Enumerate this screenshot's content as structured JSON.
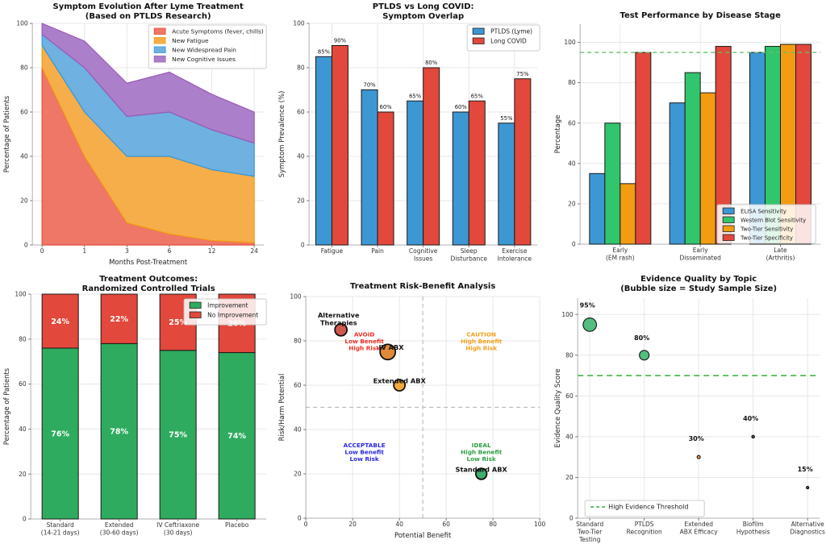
{
  "figure": {
    "background": "#ffffff",
    "description": "Six-panel PTLDS / Lyme disease research dashboard"
  },
  "chart_data": [
    {
      "type": "area",
      "stacked": true,
      "title": [
        "Symptom Evolution After Lyme Treatment",
        "(Based on PTLDS Research)"
      ],
      "xlabel": "Months Post-Treatment",
      "ylabel": "Percentage of Patients",
      "x_ticks": [
        "0",
        "1",
        "3",
        "6",
        "12",
        "24"
      ],
      "yticks": [
        0,
        20,
        40,
        60,
        80,
        100
      ],
      "ylim": [
        0,
        100
      ],
      "grid": true,
      "legend_position": "upper-right",
      "series": [
        {
          "name": "Acute Symptoms (fever, chills)",
          "color": "#ee7767",
          "edge": "#e74c3c",
          "values": [
            80,
            40,
            10,
            5,
            2,
            1
          ]
        },
        {
          "name": "New Fatigue",
          "color": "#f6ae4b",
          "edge": "#f39c12",
          "values": [
            10,
            20,
            30,
            35,
            32,
            30
          ]
        },
        {
          "name": "New Widespread Pain",
          "color": "#6fb1e0",
          "edge": "#3498db",
          "values": [
            5,
            20,
            18,
            20,
            18,
            15
          ]
        },
        {
          "name": "New Cognitive Issues",
          "color": "#ab7fc9",
          "edge": "#9b59b6",
          "values": [
            5,
            12,
            15,
            18,
            16,
            14
          ]
        }
      ]
    },
    {
      "type": "bar",
      "grouped": true,
      "title": [
        "PTLDS vs Long COVID:",
        "Symptom Overlap"
      ],
      "xlabel": "",
      "ylabel": "Symptom Prevalence (%)",
      "categories": [
        [
          "Fatigue"
        ],
        [
          "Pain"
        ],
        [
          "Cognitive",
          "Issues"
        ],
        [
          "Sleep",
          "Disturbance"
        ],
        [
          "Exercise",
          "Intolerance"
        ]
      ],
      "yticks": [
        0,
        20,
        40,
        60,
        80,
        100
      ],
      "ylim": [
        0,
        100
      ],
      "grid": true,
      "bar_value_labels": true,
      "legend_position": "upper-right",
      "series": [
        {
          "name": "PTLDS (Lyme)",
          "color": "#3d97d3",
          "values": [
            85,
            70,
            65,
            60,
            55
          ]
        },
        {
          "name": "Long COVID",
          "color": "#e2483b",
          "values": [
            90,
            60,
            80,
            65,
            75
          ]
        }
      ]
    },
    {
      "type": "bar",
      "grouped": true,
      "title": [
        "Test Performance by Disease Stage"
      ],
      "xlabel": "",
      "ylabel": "Percentage",
      "categories": [
        [
          "Early",
          "(EM rash)"
        ],
        [
          "Early",
          "Disseminated"
        ],
        [
          "Late",
          "(Arthritis)"
        ]
      ],
      "yticks": [
        0,
        20,
        40,
        60,
        80,
        100
      ],
      "ylim": [
        0,
        109
      ],
      "grid": true,
      "reference_line": {
        "y": 95,
        "color": "#6abf69",
        "style": "dashed"
      },
      "legend_position": "lower-right",
      "series": [
        {
          "name": "ELISA Sensitivity",
          "color": "#3d97d3",
          "values": [
            35,
            70,
            95
          ]
        },
        {
          "name": "Western Blot Sensitivity",
          "color": "#31c56d",
          "values": [
            60,
            85,
            98
          ]
        },
        {
          "name": "Two-Tier Sensitivity",
          "color": "#f39c12",
          "values": [
            30,
            75,
            99
          ]
        },
        {
          "name": "Two-Tier Specificity",
          "color": "#e2483b",
          "values": [
            95,
            98,
            99
          ]
        }
      ]
    },
    {
      "type": "bar",
      "stacked": true,
      "title": [
        "Treatment Outcomes:",
        "Randomized Controlled Trials"
      ],
      "xlabel": "",
      "ylabel": "Percentage of Patients",
      "categories": [
        [
          "Standard",
          "(14-21 days)"
        ],
        [
          "Extended",
          "(30-60 days)"
        ],
        [
          "IV Ceftriaxone",
          "(30 days)"
        ],
        [
          "Placebo"
        ]
      ],
      "yticks": [
        0,
        20,
        40,
        60,
        80,
        100
      ],
      "ylim": [
        0,
        100
      ],
      "grid": true,
      "segment_labels": true,
      "legend_position": "upper-right",
      "series": [
        {
          "name": "Improvement",
          "color": "#2eab5e",
          "values": [
            76,
            78,
            75,
            74
          ]
        },
        {
          "name": "No Improvement",
          "color": "#e2483b",
          "values": [
            24,
            22,
            25,
            26
          ]
        }
      ]
    },
    {
      "type": "scatter",
      "title": [
        "Treatment Risk-Benefit Analysis"
      ],
      "xlabel": "Potential Benefit",
      "ylabel": "Risk/Harm Potential",
      "xlim": [
        0,
        100
      ],
      "ylim": [
        0,
        100
      ],
      "xticks": [
        0,
        20,
        40,
        60,
        80,
        100
      ],
      "yticks": [
        0,
        20,
        40,
        60,
        80,
        100
      ],
      "grid": true,
      "divider_lines": {
        "x": 50,
        "y": 50,
        "color": "#bcbcbc",
        "style": "dashed"
      },
      "points": [
        {
          "label": "Alternative Therapies",
          "x": 15,
          "y": 85,
          "radius": 7.5,
          "color": "#cf584e",
          "label_lines": [
            "Alternative",
            "Therapies"
          ],
          "label_x": 14,
          "label_y": 90.5
        },
        {
          "label": "IV ABX",
          "x": 35,
          "y": 75,
          "radius": 9.5,
          "color": "#e08a38",
          "label_lines": [
            "IV ABX"
          ],
          "label_x": 36.5,
          "label_y": 76
        },
        {
          "label": "Extended ABX",
          "x": 40,
          "y": 60,
          "radius": 7,
          "color": "#f2a93e",
          "label_lines": [
            "Extended ABX"
          ],
          "label_x": 40,
          "label_y": 61
        },
        {
          "label": "Standard ABX",
          "x": 75,
          "y": 20,
          "radius": 6.8,
          "color": "#3fae6e",
          "label_lines": [
            "Standard ABX"
          ],
          "label_x": 75,
          "label_y": 21
        }
      ],
      "quadrant_labels": [
        {
          "lines": [
            "AVOID",
            "Low Benefit",
            "High Risk"
          ],
          "x": 25,
          "y": 82,
          "color": "#ee2e24"
        },
        {
          "lines": [
            "CAUTION",
            "High Benefit",
            "High Risk"
          ],
          "x": 75,
          "y": 82,
          "color": "#f59e1b"
        },
        {
          "lines": [
            "ACCEPTABLE",
            "Low Benefit",
            "Low Risk"
          ],
          "x": 25,
          "y": 32,
          "color": "#2929e0"
        },
        {
          "lines": [
            "IDEAL",
            "High Benefit",
            "Low Risk"
          ],
          "x": 75,
          "y": 32,
          "color": "#2f9e44"
        }
      ]
    },
    {
      "type": "bubble",
      "title": [
        "Evidence Quality by Topic",
        "(Bubble size = Study Sample Size)"
      ],
      "xlabel": "",
      "ylabel": "Evidence Quality Score",
      "categories": [
        [
          "Standard",
          "Two-Tier",
          "Testing"
        ],
        [
          "PTLDS",
          "Recognition"
        ],
        [
          "Extended",
          "ABX Efficacy"
        ],
        [
          "Biofilm",
          "Hypothesis"
        ],
        [
          "Alternative",
          "Diagnostics"
        ]
      ],
      "yticks": [
        0,
        20,
        40,
        60,
        80,
        100
      ],
      "ylim": [
        0,
        108
      ],
      "grid": true,
      "threshold_line": {
        "y": 70,
        "color": "#66c26a",
        "style": "dashed",
        "label": "High Evidence Threshold"
      },
      "legend_position": "lower-left",
      "points": [
        {
          "value": 95,
          "label": "95%",
          "radius": 8.3,
          "color": "#52be80"
        },
        {
          "value": 80,
          "label": "80%",
          "radius": 6,
          "color": "#52be80"
        },
        {
          "value": 30,
          "label": "30%",
          "radius": 2,
          "color": "#e8a33d"
        },
        {
          "value": 40,
          "label": "40%",
          "radius": 1.7,
          "color": "#555555"
        },
        {
          "value": 15,
          "label": "15%",
          "radius": 1.5,
          "color": "#555555"
        }
      ]
    }
  ]
}
